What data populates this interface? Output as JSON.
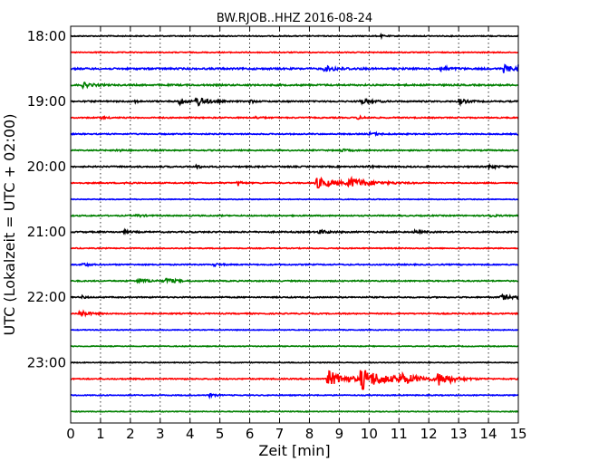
{
  "chart_data": {
    "type": "line",
    "title": "BW.RJOB..HHZ 2016-08-24",
    "xlabel": "Zeit  [min]",
    "ylabel": "UTC (Lokalzeit = UTC + 02:00)",
    "xlim": [
      0,
      15
    ],
    "x_ticks": [
      0,
      1,
      2,
      3,
      4,
      5,
      6,
      7,
      8,
      9,
      10,
      11,
      12,
      13,
      14,
      15
    ],
    "y_tick_labels": [
      "18:00",
      "19:00",
      "20:00",
      "21:00",
      "22:00",
      "23:00"
    ],
    "grid": "vertical dotted",
    "series_colors": [
      "#000000",
      "#ff0000",
      "#0000ff",
      "#008000"
    ],
    "traces": [
      {
        "start": "18:00",
        "noise": 0.5,
        "events": [
          {
            "t": 10.4,
            "amp": 1.2,
            "dur": 0.2
          }
        ]
      },
      {
        "start": "18:15",
        "noise": 0.5,
        "events": []
      },
      {
        "start": "18:30",
        "noise": 0.9,
        "events": [
          {
            "t": 8.5,
            "amp": 2.5,
            "dur": 0.8
          },
          {
            "t": 12.4,
            "amp": 2.5,
            "dur": 0.4
          },
          {
            "t": 14.5,
            "amp": 4,
            "dur": 0.5
          },
          {
            "t": 15.0,
            "amp": 5,
            "dur": 0.2
          }
        ]
      },
      {
        "start": "18:45",
        "noise": 0.8,
        "events": [
          {
            "t": 0.4,
            "amp": 2.5,
            "dur": 0.5
          }
        ]
      },
      {
        "start": "19:00",
        "noise": 0.7,
        "events": [
          {
            "t": 2.1,
            "amp": 2.5,
            "dur": 0.15
          },
          {
            "t": 3.6,
            "amp": 4,
            "dur": 0.3
          },
          {
            "t": 4.2,
            "amp": 6,
            "dur": 0.5
          },
          {
            "t": 6.0,
            "amp": 2,
            "dur": 0.2
          },
          {
            "t": 9.7,
            "amp": 2.5,
            "dur": 0.6
          },
          {
            "t": 13.0,
            "amp": 3,
            "dur": 0.4
          }
        ]
      },
      {
        "start": "19:15",
        "noise": 0.6,
        "events": [
          {
            "t": 1.0,
            "amp": 1.2,
            "dur": 0.3
          },
          {
            "t": 6.2,
            "amp": 1.2,
            "dur": 0.3
          },
          {
            "t": 9.6,
            "amp": 1.5,
            "dur": 0.4
          }
        ]
      },
      {
        "start": "19:30",
        "noise": 0.6,
        "events": [
          {
            "t": 10.0,
            "amp": 1.5,
            "dur": 0.6
          },
          {
            "t": 15.0,
            "amp": 2,
            "dur": 0.2
          }
        ]
      },
      {
        "start": "19:45",
        "noise": 0.6,
        "events": [
          {
            "t": 1.5,
            "amp": 1.2,
            "dur": 0.4
          },
          {
            "t": 9.0,
            "amp": 1.5,
            "dur": 0.4
          }
        ]
      },
      {
        "start": "20:00",
        "noise": 0.7,
        "events": [
          {
            "t": 4.2,
            "amp": 1.5,
            "dur": 0.3
          },
          {
            "t": 10.0,
            "amp": 1.5,
            "dur": 0.2
          },
          {
            "t": 14.0,
            "amp": 2,
            "dur": 0.4
          }
        ]
      },
      {
        "start": "20:15",
        "noise": 0.6,
        "events": [
          {
            "t": 1.8,
            "amp": 1.2,
            "dur": 0.3
          },
          {
            "t": 5.6,
            "amp": 4,
            "dur": 0.15
          },
          {
            "t": 8.2,
            "amp": 6,
            "dur": 1.0
          },
          {
            "t": 9.3,
            "amp": 5,
            "dur": 1.2
          }
        ]
      },
      {
        "start": "20:30",
        "noise": 0.4,
        "events": []
      },
      {
        "start": "20:45",
        "noise": 0.6,
        "events": [
          {
            "t": 2.2,
            "amp": 1.2,
            "dur": 0.4
          },
          {
            "t": 14.0,
            "amp": 1.2,
            "dur": 0.4
          }
        ]
      },
      {
        "start": "21:00",
        "noise": 0.7,
        "events": [
          {
            "t": 1.8,
            "amp": 1.2,
            "dur": 0.3
          },
          {
            "t": 8.3,
            "amp": 2,
            "dur": 0.5
          },
          {
            "t": 11.5,
            "amp": 1.5,
            "dur": 0.4
          }
        ]
      },
      {
        "start": "21:15",
        "noise": 0.5,
        "events": []
      },
      {
        "start": "21:30",
        "noise": 0.6,
        "events": [
          {
            "t": 0.4,
            "amp": 2,
            "dur": 0.3
          },
          {
            "t": 4.8,
            "amp": 1.5,
            "dur": 0.3
          }
        ]
      },
      {
        "start": "21:45",
        "noise": 0.6,
        "events": [
          {
            "t": 2.2,
            "amp": 3,
            "dur": 0.6
          },
          {
            "t": 3.2,
            "amp": 3,
            "dur": 0.5
          }
        ]
      },
      {
        "start": "22:00",
        "noise": 0.6,
        "events": [
          {
            "t": 0.4,
            "amp": 2,
            "dur": 0.15
          },
          {
            "t": 14.4,
            "amp": 3,
            "dur": 0.6
          },
          {
            "t": 15.0,
            "amp": 6,
            "dur": 0.2
          }
        ]
      },
      {
        "start": "22:15",
        "noise": 0.6,
        "events": [
          {
            "t": 0.3,
            "amp": 4,
            "dur": 0.4
          }
        ]
      },
      {
        "start": "22:30",
        "noise": 0.4,
        "events": []
      },
      {
        "start": "22:45",
        "noise": 0.4,
        "events": []
      },
      {
        "start": "23:00",
        "noise": 0.4,
        "events": []
      },
      {
        "start": "23:15",
        "noise": 0.6,
        "events": [
          {
            "t": 8.6,
            "amp": 9,
            "dur": 1.0
          },
          {
            "t": 9.7,
            "amp": 11,
            "dur": 1.3
          },
          {
            "t": 11.0,
            "amp": 5,
            "dur": 1.0
          },
          {
            "t": 12.3,
            "amp": 7,
            "dur": 0.8
          }
        ]
      },
      {
        "start": "23:30",
        "noise": 0.5,
        "events": [
          {
            "t": 4.6,
            "amp": 2,
            "dur": 0.3
          }
        ]
      },
      {
        "start": "23:45",
        "noise": 0.4,
        "events": []
      }
    ]
  }
}
